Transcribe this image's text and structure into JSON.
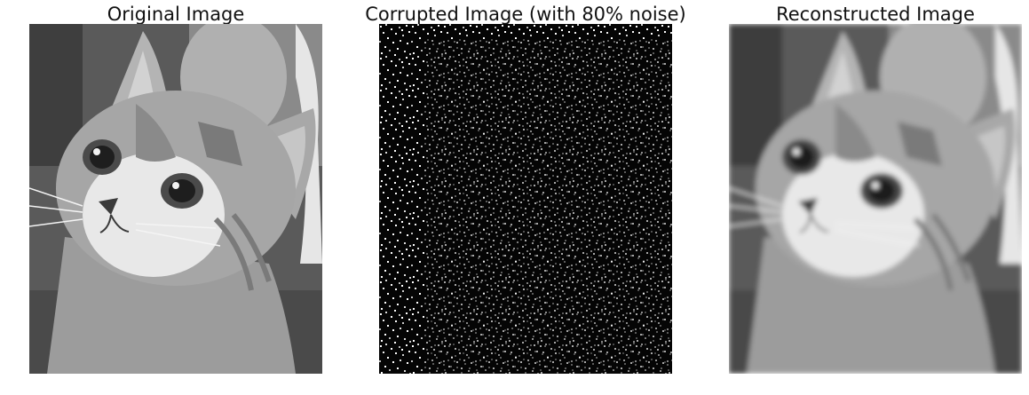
{
  "panels": [
    {
      "title": "Original Image",
      "image": "grayscale-kitten-photo"
    },
    {
      "title": "Corrupted Image (with 80% noise)",
      "image": "noise-corrupted-kitten-photo"
    },
    {
      "title": "Reconstructed Image",
      "image": "reconstructed-kitten-photo"
    }
  ]
}
